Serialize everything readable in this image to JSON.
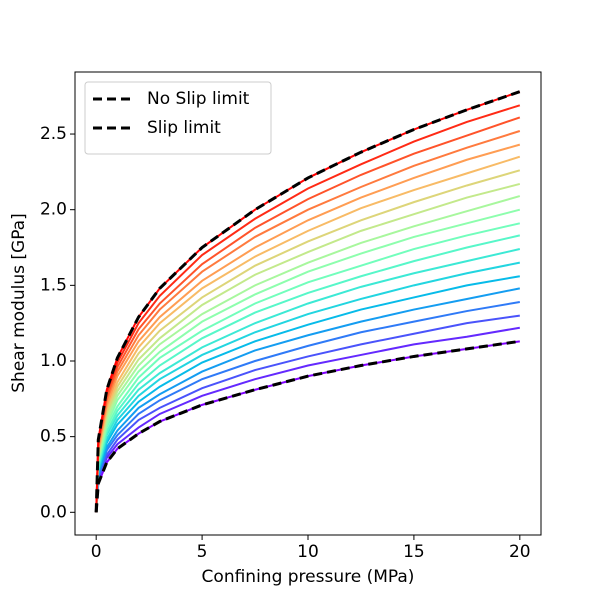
{
  "chart_data": {
    "type": "line",
    "xlabel": "Confining pressure (MPa)",
    "ylabel": "Shear modulus [GPa]",
    "x": [
      0,
      0.1,
      0.5,
      1,
      2,
      3,
      5,
      7.5,
      10,
      12.5,
      15,
      17.5,
      20
    ],
    "xlim": [
      -1,
      21
    ],
    "xticks": [
      0,
      5,
      10,
      15,
      20
    ],
    "ylim": [
      -0.15,
      2.91
    ],
    "yticks": [
      {
        "value": 0,
        "label": "0.0"
      },
      0.5,
      {
        "value": 1,
        "label": "1.0"
      },
      1.5,
      {
        "value": 2,
        "label": "2.0"
      },
      2.5
    ],
    "legend": "upper left",
    "series": [
      {
        "color": "#8000ff",
        "values": [
          0,
          0.19,
          0.33,
          0.42,
          0.52,
          0.6,
          0.71,
          0.81,
          0.9,
          0.97,
          1.03,
          1.08,
          1.13
        ]
      },
      {
        "color": "#6429fe",
        "values": [
          0,
          0.21,
          0.36,
          0.45,
          0.56,
          0.65,
          0.77,
          0.88,
          0.97,
          1.04,
          1.11,
          1.16,
          1.22
        ]
      },
      {
        "color": "#4a53fb",
        "values": [
          0,
          0.22,
          0.38,
          0.48,
          0.61,
          0.69,
          0.82,
          0.94,
          1.03,
          1.11,
          1.18,
          1.25,
          1.3
        ]
      },
      {
        "color": "#2f7af7",
        "values": [
          0,
          0.24,
          0.41,
          0.51,
          0.65,
          0.74,
          0.88,
          1.0,
          1.1,
          1.19,
          1.26,
          1.33,
          1.39
        ]
      },
      {
        "color": "#149df1",
        "values": [
          0,
          0.25,
          0.43,
          0.54,
          0.69,
          0.78,
          0.93,
          1.07,
          1.17,
          1.26,
          1.34,
          1.41,
          1.48
        ]
      },
      {
        "color": "#07bbe9",
        "values": [
          0,
          0.27,
          0.46,
          0.58,
          0.73,
          0.83,
          0.99,
          1.13,
          1.24,
          1.34,
          1.42,
          1.5,
          1.56
        ]
      },
      {
        "color": "#22d5e0",
        "values": [
          0,
          0.28,
          0.48,
          0.61,
          0.77,
          0.88,
          1.04,
          1.19,
          1.31,
          1.41,
          1.5,
          1.58,
          1.65
        ]
      },
      {
        "color": "#3ce9d5",
        "values": [
          0,
          0.3,
          0.51,
          0.64,
          0.81,
          0.92,
          1.09,
          1.25,
          1.38,
          1.49,
          1.58,
          1.66,
          1.74
        ]
      },
      {
        "color": "#57f7c9",
        "values": [
          0,
          0.31,
          0.53,
          0.67,
          0.85,
          0.97,
          1.15,
          1.32,
          1.45,
          1.56,
          1.66,
          1.75,
          1.83
        ]
      },
      {
        "color": "#72febc",
        "values": [
          0,
          0.33,
          0.56,
          0.7,
          0.89,
          1.02,
          1.2,
          1.38,
          1.52,
          1.63,
          1.74,
          1.83,
          1.91
        ]
      },
      {
        "color": "#8dfead",
        "values": [
          0,
          0.34,
          0.58,
          0.74,
          0.93,
          1.06,
          1.26,
          1.44,
          1.59,
          1.71,
          1.82,
          1.91,
          2.0
        ]
      },
      {
        "color": "#a8f79d",
        "values": [
          0,
          0.36,
          0.61,
          0.77,
          0.97,
          1.11,
          1.31,
          1.5,
          1.65,
          1.78,
          1.89,
          1.99,
          2.09
        ]
      },
      {
        "color": "#c3e98b",
        "values": [
          0,
          0.37,
          0.64,
          0.8,
          1.01,
          1.15,
          1.37,
          1.57,
          1.72,
          1.86,
          1.97,
          2.08,
          2.17
        ]
      },
      {
        "color": "#ddd579",
        "values": [
          0,
          0.39,
          0.66,
          0.83,
          1.05,
          1.2,
          1.42,
          1.63,
          1.79,
          1.93,
          2.05,
          2.16,
          2.26
        ]
      },
      {
        "color": "#f8bb66",
        "values": [
          0,
          0.4,
          0.69,
          0.86,
          1.09,
          1.25,
          1.48,
          1.69,
          1.86,
          2.01,
          2.13,
          2.24,
          2.35
        ]
      },
      {
        "color": "#ff9d53",
        "values": [
          0,
          0.42,
          0.71,
          0.9,
          1.13,
          1.29,
          1.53,
          1.75,
          1.93,
          2.08,
          2.21,
          2.33,
          2.43
        ]
      },
      {
        "color": "#ff7a3e",
        "values": [
          0,
          0.43,
          0.74,
          0.93,
          1.17,
          1.34,
          1.59,
          1.82,
          2.0,
          2.15,
          2.29,
          2.41,
          2.52
        ]
      },
      {
        "color": "#ff532a",
        "values": [
          0,
          0.45,
          0.76,
          0.96,
          1.21,
          1.38,
          1.64,
          1.88,
          2.07,
          2.23,
          2.37,
          2.49,
          2.61
        ]
      },
      {
        "color": "#ff2a15",
        "values": [
          0,
          0.46,
          0.79,
          0.99,
          1.25,
          1.43,
          1.7,
          1.94,
          2.14,
          2.3,
          2.45,
          2.58,
          2.69
        ]
      },
      {
        "color": "#ff0000",
        "values": [
          0,
          0.48,
          0.81,
          1.02,
          1.29,
          1.48,
          1.75,
          2.0,
          2.21,
          2.38,
          2.53,
          2.66,
          2.78
        ]
      },
      {
        "name": "No Slip limit",
        "color": "#000000",
        "dashed": true,
        "values": [
          0,
          0.48,
          0.81,
          1.02,
          1.29,
          1.48,
          1.75,
          2.0,
          2.21,
          2.38,
          2.53,
          2.66,
          2.78
        ]
      },
      {
        "name": "Slip limit",
        "color": "#000000",
        "dashed": true,
        "values": [
          0,
          0.19,
          0.33,
          0.42,
          0.52,
          0.6,
          0.71,
          0.81,
          0.9,
          0.97,
          1.03,
          1.08,
          1.13
        ]
      }
    ]
  }
}
